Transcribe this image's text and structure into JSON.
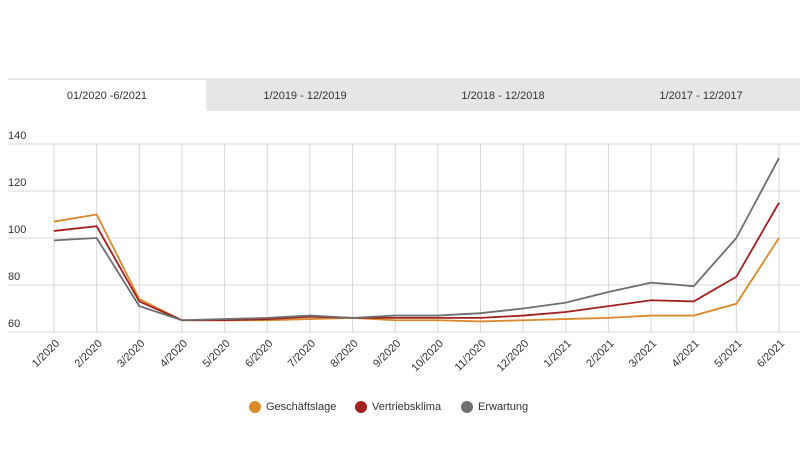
{
  "tabs": [
    "01/2020 -6/2021",
    "1/2019 - 12/2019",
    "1/2018 - 12/2018",
    "1/2017 - 12/2017"
  ],
  "chart_data": {
    "type": "line",
    "categories": [
      "1/2020",
      "2/2020",
      "3/2020",
      "4/2020",
      "5/2020",
      "6/2020",
      "7/2020",
      "8/2020",
      "9/2020",
      "10/2020",
      "11/2020",
      "12/2020",
      "1/2021",
      "2/2021",
      "3/2021",
      "4/2021",
      "5/2021",
      "6/2021"
    ],
    "series": [
      {
        "name": "Geschäftslage",
        "color": "#d98a2b",
        "values": [
          107,
          110,
          74,
          65,
          65,
          65,
          65.5,
          66,
          65,
          65,
          64.5,
          65,
          65.5,
          66,
          67,
          67,
          72,
          100
        ]
      },
      {
        "name": "Vertriebsklima",
        "color": "#a3201f",
        "values": [
          103,
          105,
          73,
          65,
          65,
          65.5,
          66.5,
          66,
          66,
          66,
          66,
          67,
          68.5,
          71,
          73.5,
          73,
          83.5,
          115
        ]
      },
      {
        "name": "Erwartung",
        "color": "#6f6f6f",
        "values": [
          99,
          100,
          71,
          65,
          65.5,
          66,
          67,
          66,
          67,
          67,
          68,
          70,
          72.5,
          77,
          81,
          79.5,
          100,
          134
        ]
      }
    ],
    "ylim": [
      60,
      140
    ],
    "yticks": [
      60,
      80,
      100,
      120,
      140
    ],
    "grid": true
  }
}
